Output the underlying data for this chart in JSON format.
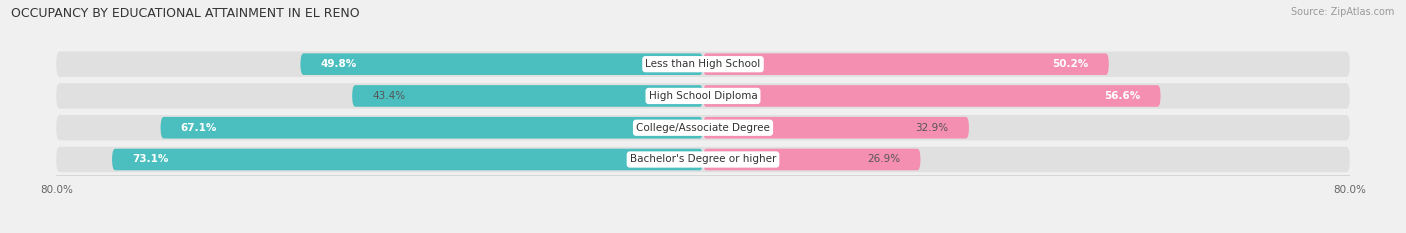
{
  "title": "OCCUPANCY BY EDUCATIONAL ATTAINMENT IN EL RENO",
  "source": "Source: ZipAtlas.com",
  "categories": [
    "Less than High School",
    "High School Diploma",
    "College/Associate Degree",
    "Bachelor's Degree or higher"
  ],
  "owner_values": [
    49.8,
    43.4,
    67.1,
    73.1
  ],
  "renter_values": [
    50.2,
    56.6,
    32.9,
    26.9
  ],
  "owner_color": "#4BBFBF",
  "renter_color": "#F48FB1",
  "owner_label_colors": [
    "white",
    "#888888",
    "white",
    "white"
  ],
  "renter_label_colors": [
    "white",
    "white",
    "#888888",
    "#888888"
  ],
  "background_color": "#f0f0f0",
  "bar_bg_color": "#e0e0e0",
  "xlim": 80.0,
  "title_fontsize": 9,
  "label_fontsize": 7.5,
  "tick_fontsize": 7.5,
  "source_fontsize": 7
}
